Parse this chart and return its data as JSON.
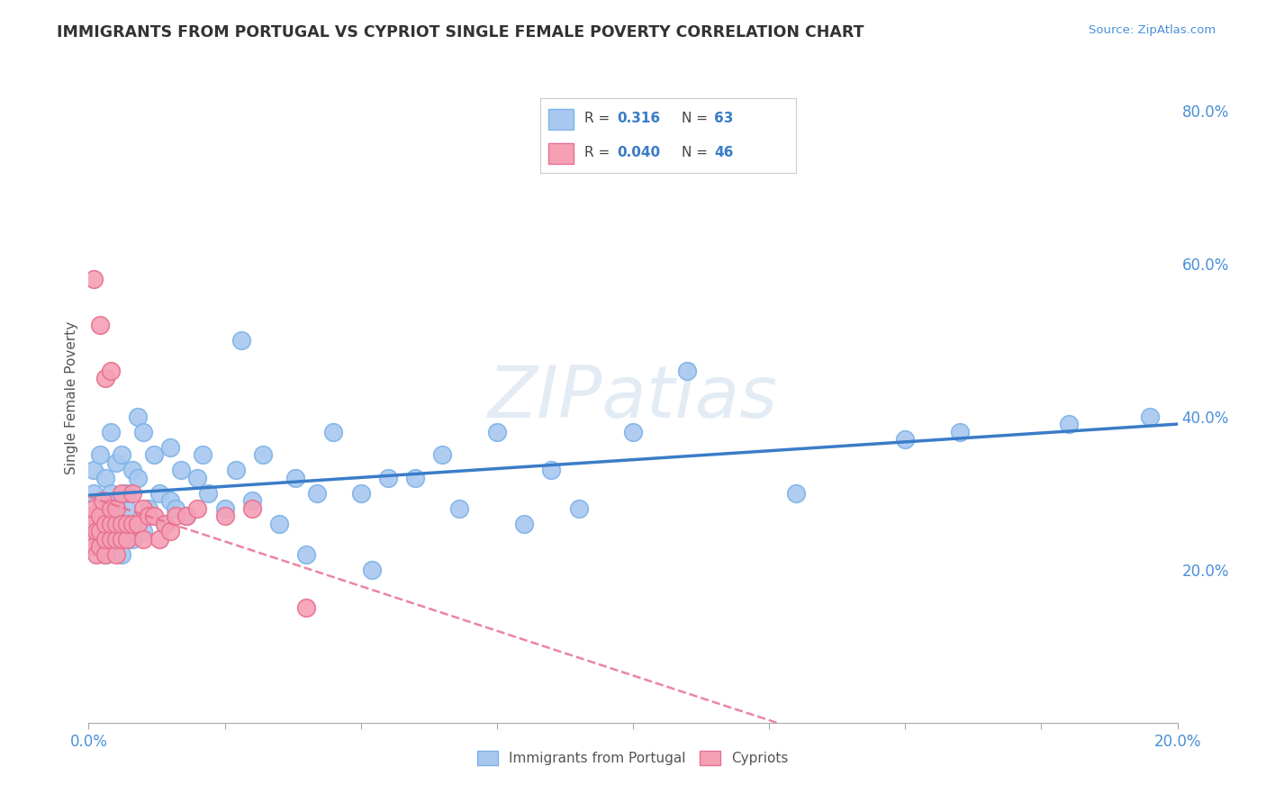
{
  "title": "IMMIGRANTS FROM PORTUGAL VS CYPRIOT SINGLE FEMALE POVERTY CORRELATION CHART",
  "source_text": "Source: ZipAtlas.com",
  "ylabel": "Single Female Poverty",
  "right_yticks": [
    "20.0%",
    "40.0%",
    "60.0%",
    "80.0%"
  ],
  "right_ytick_vals": [
    0.2,
    0.4,
    0.6,
    0.8
  ],
  "legend_label1": "Immigrants from Portugal",
  "legend_label2": "Cypriots",
  "R1": "0.316",
  "N1": "63",
  "R2": "0.040",
  "N2": "46",
  "color_blue": "#A8C8F0",
  "color_blue_edge": "#7EB3E8",
  "color_pink": "#F5A0B5",
  "color_pink_edge": "#E87090",
  "color_line_blue": "#3A7CC8",
  "color_line_pink": "#E87090",
  "background_color": "#FFFFFF",
  "grid_color": "#CCCCCC",
  "xlim": [
    0.0,
    0.2
  ],
  "ylim": [
    0.0,
    0.85
  ],
  "blue_points_x": [
    0.001,
    0.001,
    0.001,
    0.002,
    0.002,
    0.002,
    0.003,
    0.003,
    0.003,
    0.004,
    0.004,
    0.005,
    0.005,
    0.005,
    0.006,
    0.006,
    0.007,
    0.007,
    0.008,
    0.008,
    0.009,
    0.009,
    0.01,
    0.01,
    0.011,
    0.012,
    0.013,
    0.014,
    0.015,
    0.015,
    0.016,
    0.017,
    0.018,
    0.02,
    0.021,
    0.022,
    0.025,
    0.027,
    0.028,
    0.03,
    0.032,
    0.035,
    0.038,
    0.04,
    0.042,
    0.045,
    0.05,
    0.052,
    0.055,
    0.06,
    0.065,
    0.068,
    0.075,
    0.08,
    0.085,
    0.09,
    0.1,
    0.11,
    0.13,
    0.15,
    0.16,
    0.18,
    0.195
  ],
  "blue_points_y": [
    0.27,
    0.3,
    0.33,
    0.24,
    0.28,
    0.35,
    0.22,
    0.25,
    0.32,
    0.3,
    0.38,
    0.26,
    0.29,
    0.34,
    0.22,
    0.35,
    0.28,
    0.3,
    0.24,
    0.33,
    0.32,
    0.4,
    0.25,
    0.38,
    0.28,
    0.35,
    0.3,
    0.26,
    0.29,
    0.36,
    0.28,
    0.33,
    0.27,
    0.32,
    0.35,
    0.3,
    0.28,
    0.33,
    0.5,
    0.29,
    0.35,
    0.26,
    0.32,
    0.22,
    0.3,
    0.38,
    0.3,
    0.2,
    0.32,
    0.32,
    0.35,
    0.28,
    0.38,
    0.26,
    0.33,
    0.28,
    0.38,
    0.46,
    0.3,
    0.37,
    0.38,
    0.39,
    0.4
  ],
  "pink_points_x": [
    0.0005,
    0.0005,
    0.001,
    0.001,
    0.001,
    0.001,
    0.0015,
    0.0015,
    0.002,
    0.002,
    0.002,
    0.002,
    0.0025,
    0.003,
    0.003,
    0.003,
    0.003,
    0.004,
    0.004,
    0.004,
    0.004,
    0.005,
    0.005,
    0.005,
    0.005,
    0.006,
    0.006,
    0.006,
    0.007,
    0.007,
    0.008,
    0.008,
    0.009,
    0.01,
    0.01,
    0.011,
    0.012,
    0.013,
    0.014,
    0.015,
    0.016,
    0.018,
    0.02,
    0.025,
    0.03,
    0.04
  ],
  "pink_points_y": [
    0.24,
    0.27,
    0.23,
    0.26,
    0.28,
    0.58,
    0.22,
    0.25,
    0.23,
    0.25,
    0.27,
    0.52,
    0.29,
    0.22,
    0.24,
    0.26,
    0.45,
    0.24,
    0.26,
    0.28,
    0.46,
    0.22,
    0.24,
    0.26,
    0.28,
    0.24,
    0.26,
    0.3,
    0.24,
    0.26,
    0.26,
    0.3,
    0.26,
    0.24,
    0.28,
    0.27,
    0.27,
    0.24,
    0.26,
    0.25,
    0.27,
    0.27,
    0.28,
    0.27,
    0.28,
    0.15
  ]
}
